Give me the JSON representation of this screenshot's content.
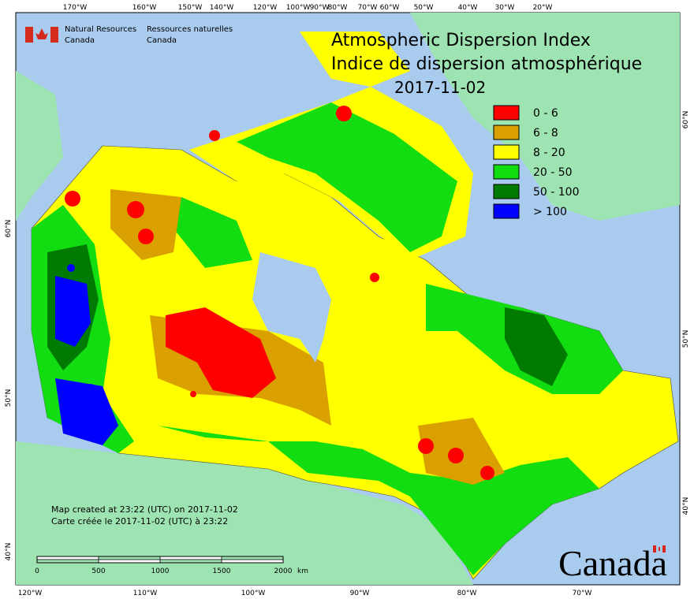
{
  "header": {
    "agency_en": [
      "Natural Resources",
      "Canada"
    ],
    "agency_fr": [
      "Ressources naturelles",
      "Canada"
    ]
  },
  "title": {
    "line1": "Atmospheric Dispersion Index",
    "line2": "Indice de dispersion atmosphérique",
    "date": "2017-11-02"
  },
  "legend": [
    {
      "label": "0 - 6",
      "color": "#ff0000"
    },
    {
      "label": "6 - 8",
      "color": "#d9a000"
    },
    {
      "label": "8 - 20",
      "color": "#ffff00"
    },
    {
      "label": "20 - 50",
      "color": "#11dd11"
    },
    {
      "label": "50 - 100",
      "color": "#007a00"
    },
    {
      "label": "> 100",
      "color": "#0000ff"
    }
  ],
  "graticule": {
    "top": [
      "170°W",
      "160°W",
      "150°W",
      "140°W",
      "120°W",
      "100°W",
      "90°W",
      "80°W",
      "70°W",
      "60°W",
      "50°W",
      "40°W",
      "30°W",
      "20°W"
    ],
    "bottom": [
      "120°W",
      "110°W",
      "100°W",
      "90°W",
      "80°W",
      "70°W"
    ],
    "left": [
      "60°N",
      "50°N",
      "40°N"
    ],
    "right": [
      "60°N",
      "50°N",
      "40°N"
    ]
  },
  "credits": [
    "Map created at 23:22 (UTC) on 2017-11-02",
    "Carte créée le 2017-11-02 (UTC) à 23:22"
  ],
  "scale_bar": [
    "0",
    "500",
    "1000",
    "1500",
    "2000",
    "km"
  ],
  "wordmark": "Canada"
}
